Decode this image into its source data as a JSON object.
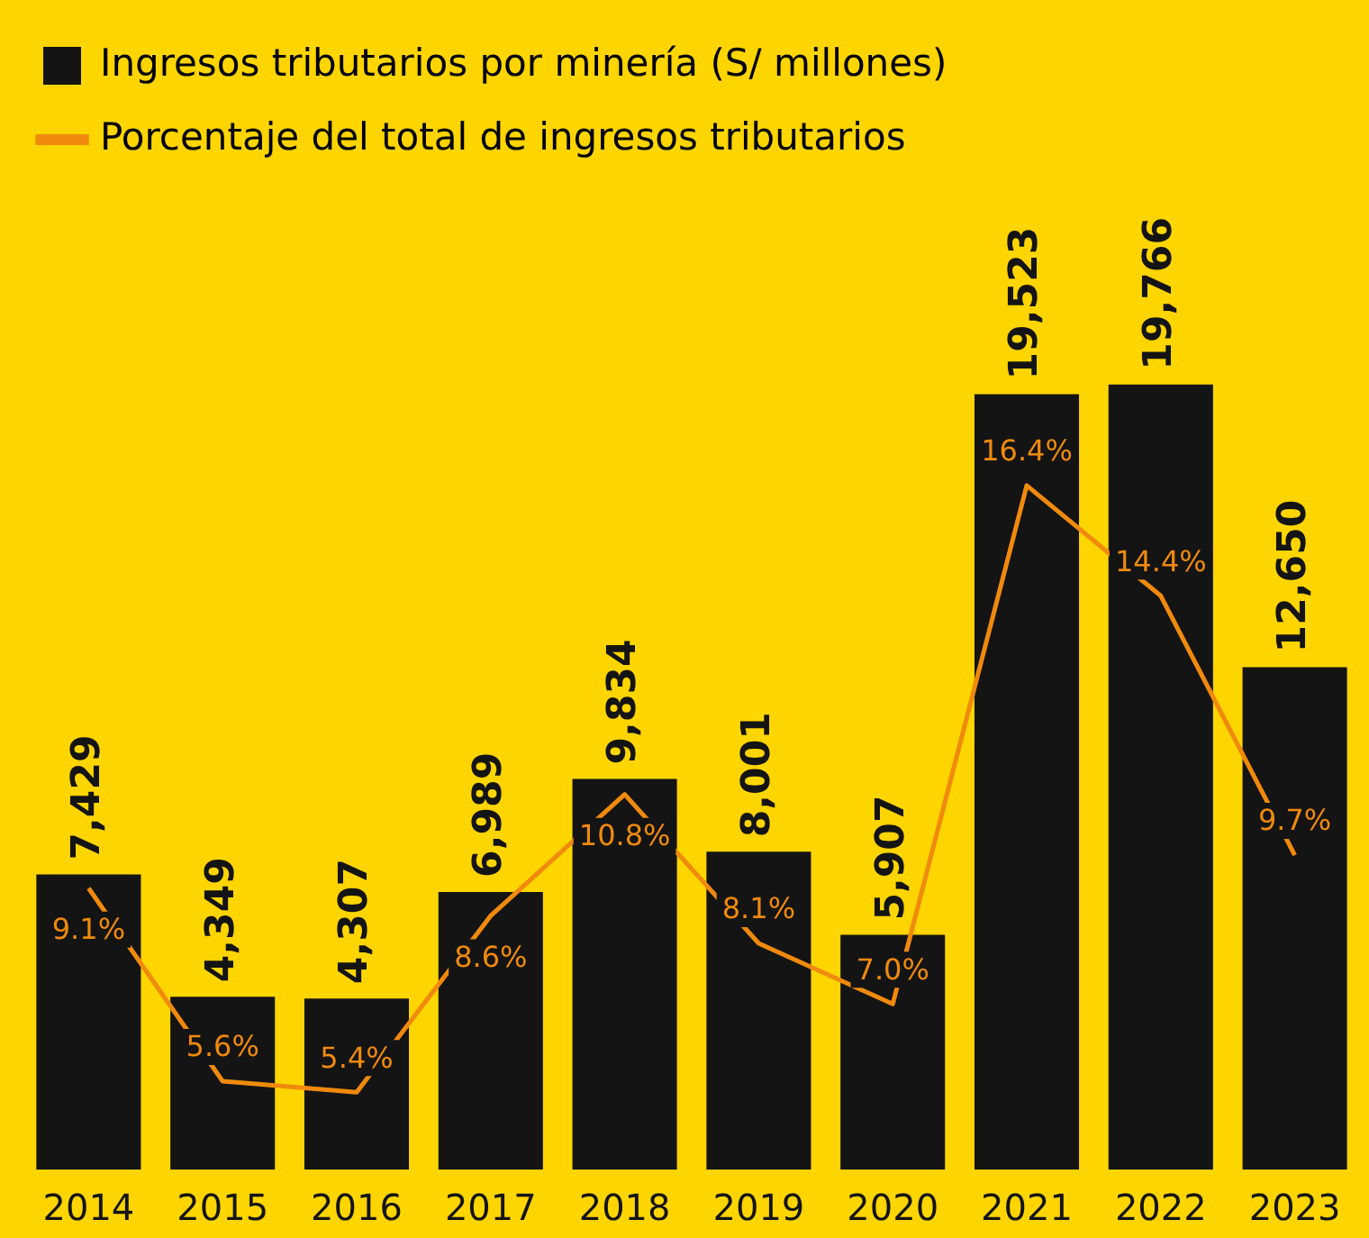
{
  "chart_data": {
    "type": "bar",
    "categories": [
      "2014",
      "2015",
      "2016",
      "2017",
      "2018",
      "2019",
      "2020",
      "2021",
      "2022",
      "2023"
    ],
    "series": [
      {
        "name": "Ingresos tributarios por minería (S/ millones)",
        "color": "#141414",
        "values": [
          7429,
          4349,
          4307,
          6989,
          9834,
          8001,
          5907,
          19523,
          19766,
          12650
        ],
        "value_labels": [
          "7,429",
          "4,349",
          "4,307",
          "6,989",
          "9,834",
          "8,001",
          "5,907",
          "19,523",
          "19,766",
          "12,650"
        ]
      },
      {
        "name": "Porcentaje del total de ingresos tributarios",
        "type": "line",
        "axis": "y2",
        "color": "#f08a0c",
        "values": [
          9.1,
          5.6,
          5.4,
          8.6,
          10.8,
          8.1,
          7.0,
          16.4,
          14.4,
          9.7
        ],
        "value_labels": [
          "9.1%",
          "5.6%",
          "5.4%",
          "8.6%",
          "10.8%",
          "8.1%",
          "7.0%",
          "16.4%",
          "14.4%",
          "9.7%"
        ]
      }
    ],
    "tick_labels": "x",
    "grid": false,
    "legend": "top left",
    "marker": "none"
  }
}
